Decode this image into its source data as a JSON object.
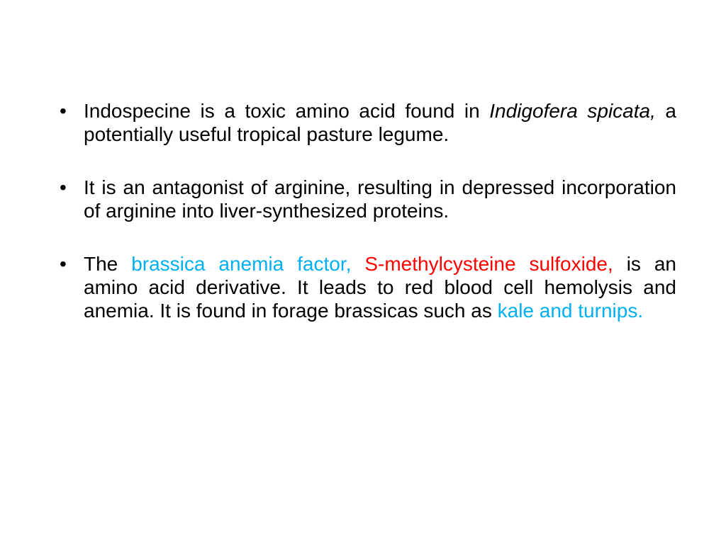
{
  "slide": {
    "background_color": "#ffffff",
    "font_family": "Comic Sans MS",
    "body_fontsize_pt": 21,
    "colors": {
      "text": "#000000",
      "cyan": "#00b0f0",
      "red": "#ff0000"
    },
    "bullets": [
      {
        "runs": [
          {
            "text": "Indospecine is a toxic amino acid found in ",
            "color": "#000000",
            "italic": false
          },
          {
            "text": "Indigofera spicata, ",
            "color": "#000000",
            "italic": true
          },
          {
            "text": "a potentially useful tropical pasture legume.",
            "color": "#000000",
            "italic": false
          }
        ]
      },
      {
        "runs": [
          {
            "text": "It is an antagonist of arginine, resulting in depressed incorporation of arginine into liver-synthesized proteins.",
            "color": "#000000",
            "italic": false
          }
        ]
      },
      {
        "runs": [
          {
            "text": "The ",
            "color": "#000000",
            "italic": false
          },
          {
            "text": "brassica anemia factor, ",
            "color": "#00b0f0",
            "italic": false
          },
          {
            "text": "S-methylcysteine sulfoxide, ",
            "color": "#ff0000",
            "italic": false
          },
          {
            "text": "is an amino acid derivative. It leads to red blood cell hemolysis and anemia. It is found in forage brassicas such as ",
            "color": "#000000",
            "italic": false
          },
          {
            "text": "kale and turnips.",
            "color": "#00b0f0",
            "italic": false
          }
        ]
      }
    ]
  }
}
